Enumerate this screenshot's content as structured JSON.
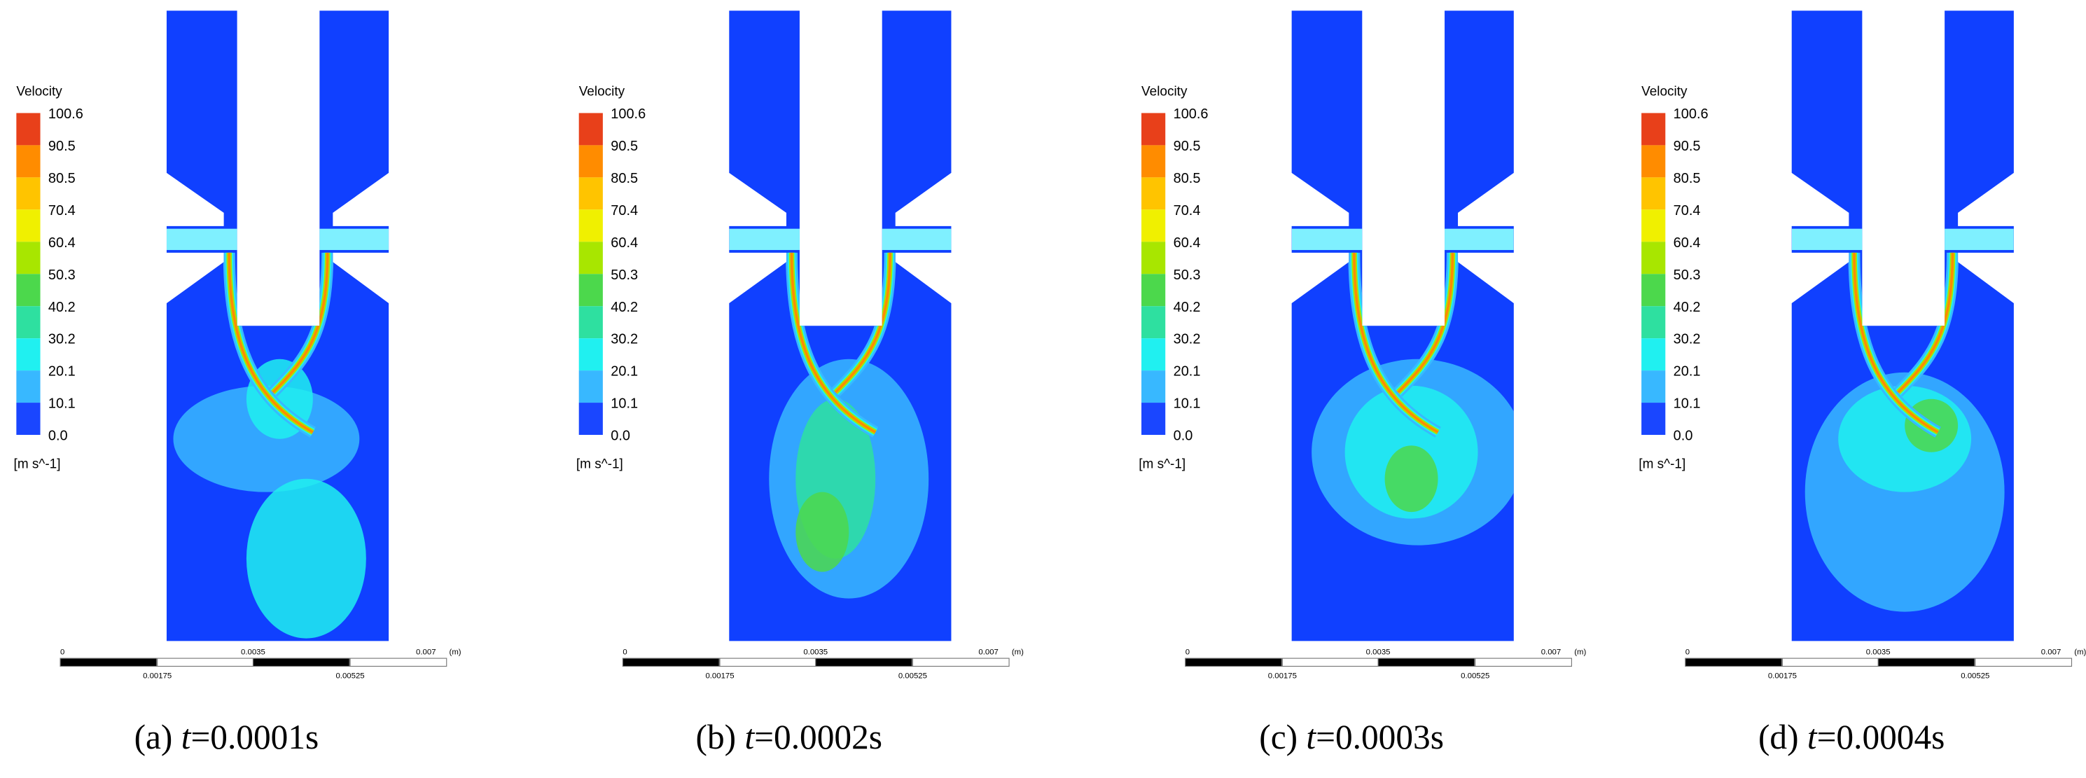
{
  "legend": {
    "title": "Velocity",
    "levels": [
      "100.6",
      "90.5",
      "80.5",
      "70.4",
      "60.4",
      "50.3",
      "40.2",
      "30.2",
      "20.1",
      "10.1",
      "0.0"
    ],
    "unit": "[m s^-1]"
  },
  "scale_bar": {
    "top": [
      "0",
      "0.0035",
      "0.007",
      "(m)"
    ],
    "bottom": [
      "0.00175",
      "0.00525"
    ]
  },
  "panels": [
    {
      "label": "(a)",
      "variable": "t",
      "value": "=0.0001s"
    },
    {
      "label": "(b)",
      "variable": "t",
      "value": "=0.0002s"
    },
    {
      "label": "(c)",
      "variable": "t",
      "value": "=0.0003s"
    },
    {
      "label": "(d)",
      "variable": "t",
      "value": "=0.0004s"
    }
  ]
}
